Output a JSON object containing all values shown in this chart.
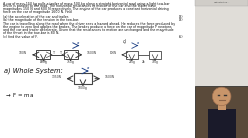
{
  "bg_color": "#f5f3f0",
  "paper_color": "#ffffff",
  "text_color": "#111111",
  "problem_text_line1": "A car of mass 150 kg pulls a trailer of mass 500 kg along a straight horizontal road using a light tow-bar",
  "problem_text_line2": "which is parallel to the road. The horizontal resistances to motion of the car and the trailer have",
  "problem_text_line3": "magnitudes 150 N and 600 N respectively. The engine of the car produces a constant horizontal driving",
  "problem_text_line4": "force on the car of magnitude 1600 N. Find",
  "part_a": "(a) the acceleration of the car and trailer.",
  "part_a_marks": "(3)",
  "part_b": "(b) the magnitude of the tension in the tow-bar.",
  "part_b_marks": "(3)",
  "mid_text1": "The car is travelling along the road when the driver sees a hazard ahead. He reduces the force produced by",
  "mid_text2": "the engine to zero and applies the brakes. The brakes produce a force on the car of magnitude F newtons",
  "mid_text3": "and the car and trailer decelerate. Given that the resistances to motion are unchanged and the magnitude",
  "mid_text4": "of the thrust in the tow-bar is 80 N,",
  "part_c": "(c) find the value of F.",
  "part_c_marks": "(5)",
  "sidebar_color": "#e0ddd8",
  "browser_color": "#d0cdc8",
  "webcam_bg": "#5a4a3a",
  "skin_color": "#c8956a",
  "shirt_color": "#1a1a2a"
}
